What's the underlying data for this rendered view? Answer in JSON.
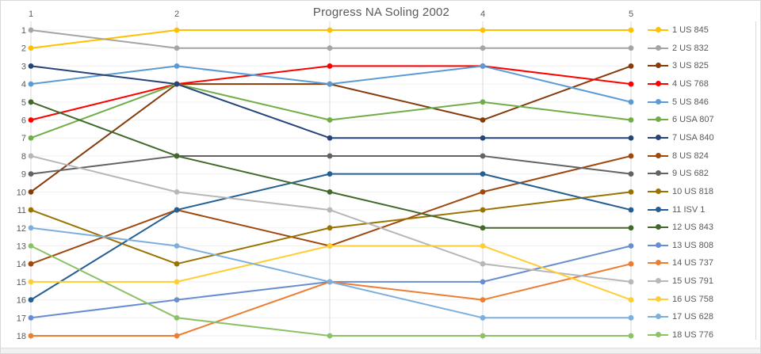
{
  "title": "Progress NA Soling 2002",
  "chart_data": {
    "type": "line",
    "subtype": "rank-bump-chart",
    "title": "Progress NA Soling 2002",
    "x": [
      1,
      2,
      3,
      4,
      5
    ],
    "x_tick_labels_visible": [
      {
        "x": 1,
        "label": "1"
      },
      {
        "x": 2,
        "label": "2"
      },
      {
        "x": 4,
        "label": "4"
      },
      {
        "x": 5,
        "label": "5"
      }
    ],
    "y_axis": {
      "inverted": true,
      "range": [
        1,
        18
      ],
      "tick_labels": [
        "1",
        "2",
        "3",
        "4",
        "5",
        "6",
        "7",
        "8",
        "9",
        "10",
        "11",
        "12",
        "13",
        "14",
        "15",
        "16",
        "17",
        "18"
      ]
    },
    "grid": true,
    "legend_position": "right",
    "marker": "circle",
    "series": [
      {
        "name": "1 US 845",
        "color": "#FFC000",
        "values": [
          2,
          1,
          1,
          1,
          1
        ]
      },
      {
        "name": "2 US 832",
        "color": "#A5A5A5",
        "values": [
          1,
          2,
          2,
          2,
          2
        ]
      },
      {
        "name": "3 US 825",
        "color": "#843C0C",
        "values": [
          10,
          4,
          4,
          6,
          3
        ]
      },
      {
        "name": "4 US 768",
        "color": "#FF0000",
        "values": [
          6,
          4,
          3,
          3,
          4
        ]
      },
      {
        "name": "5 US 846",
        "color": "#5B9BD5",
        "values": [
          4,
          3,
          4,
          3,
          5
        ]
      },
      {
        "name": "6 USA 807",
        "color": "#70AD47",
        "values": [
          7,
          4,
          6,
          5,
          6
        ]
      },
      {
        "name": "7 USA 840",
        "color": "#264478",
        "values": [
          3,
          4,
          7,
          7,
          7
        ]
      },
      {
        "name": "8 US 824",
        "color": "#9E480E",
        "values": [
          14,
          11,
          13,
          10,
          8
        ]
      },
      {
        "name": "9 US 682",
        "color": "#636363",
        "values": [
          9,
          8,
          8,
          8,
          9
        ]
      },
      {
        "name": "10 US 818",
        "color": "#997300",
        "values": [
          11,
          14,
          12,
          11,
          10
        ]
      },
      {
        "name": "11 ISV 1",
        "color": "#255E91",
        "values": [
          16,
          11,
          9,
          9,
          11
        ]
      },
      {
        "name": "12 US 843",
        "color": "#43682B",
        "values": [
          5,
          8,
          10,
          12,
          12
        ]
      },
      {
        "name": "13 US 808",
        "color": "#698ED0",
        "values": [
          17,
          16,
          15,
          15,
          13
        ]
      },
      {
        "name": "14 US 737",
        "color": "#ED7D31",
        "values": [
          18,
          18,
          15,
          16,
          14
        ]
      },
      {
        "name": "15 US 791",
        "color": "#B7B7B7",
        "values": [
          8,
          10,
          11,
          14,
          15
        ]
      },
      {
        "name": "16 US 758",
        "color": "#FFCD33",
        "values": [
          15,
          15,
          13,
          13,
          16
        ]
      },
      {
        "name": "17 US 628",
        "color": "#7CAFDD",
        "values": [
          12,
          13,
          15,
          17,
          17
        ]
      },
      {
        "name": "18 US 776",
        "color": "#8CC168",
        "values": [
          13,
          17,
          18,
          18,
          18
        ]
      }
    ]
  }
}
